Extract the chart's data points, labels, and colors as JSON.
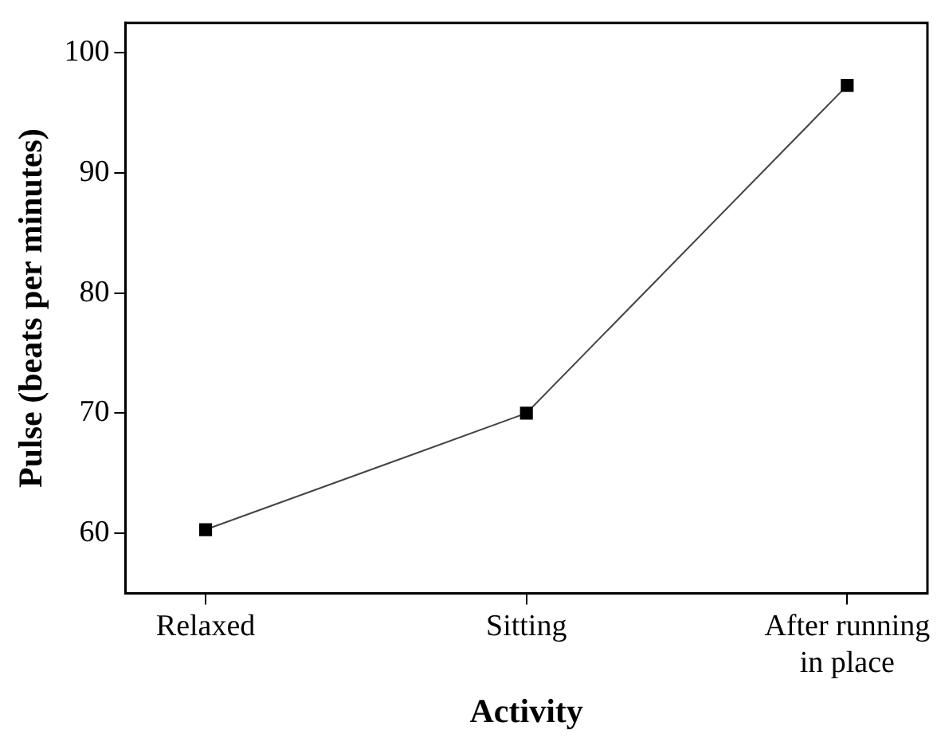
{
  "chart_data": {
    "type": "line",
    "xlabel": "Activity",
    "ylabel": "Pulse (beats per minutes)",
    "categories": [
      "Relaxed",
      "Sitting",
      "After running in place"
    ],
    "series": [
      {
        "color": "#000000",
        "values": [
          60.3,
          70,
          97.3
        ]
      }
    ],
    "ylim": [
      55,
      102.5
    ],
    "yticks": [
      60,
      70,
      80,
      90,
      100
    ],
    "grid": false,
    "legend": false,
    "marker": "square",
    "line_style": "solid"
  }
}
